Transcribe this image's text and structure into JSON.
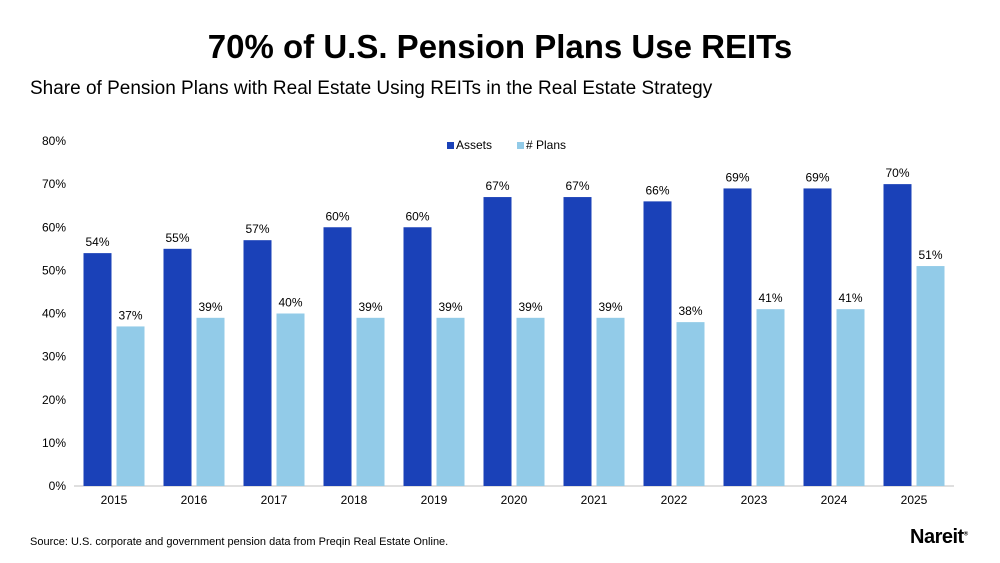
{
  "chart_data": {
    "type": "bar",
    "title": "70% of U.S. Pension Plans Use REITs",
    "subtitle": "Share of Pension Plans with Real Estate Using REITs in the Real Estate Strategy",
    "categories": [
      "2015",
      "2016",
      "2017",
      "2018",
      "2019",
      "2020",
      "2021",
      "2022",
      "2023",
      "2024",
      "2025"
    ],
    "series": [
      {
        "name": "Assets",
        "color": "#1a41b8",
        "values": [
          54,
          55,
          57,
          60,
          60,
          67,
          67,
          66,
          69,
          69,
          70
        ]
      },
      {
        "name": "# Plans",
        "color": "#92cbe8",
        "values": [
          37,
          39,
          40,
          39,
          39,
          39,
          39,
          38,
          41,
          41,
          51
        ]
      }
    ],
    "ylim": [
      0,
      80
    ],
    "yticks": [
      0,
      10,
      20,
      30,
      40,
      50,
      60,
      70,
      80
    ],
    "ytick_format": "%",
    "grid": false,
    "legend": "top-center",
    "data_labels": true
  },
  "source": "Source: U.S. corporate and government pension data from Preqin Real Estate Online.",
  "logo": "Nareit"
}
